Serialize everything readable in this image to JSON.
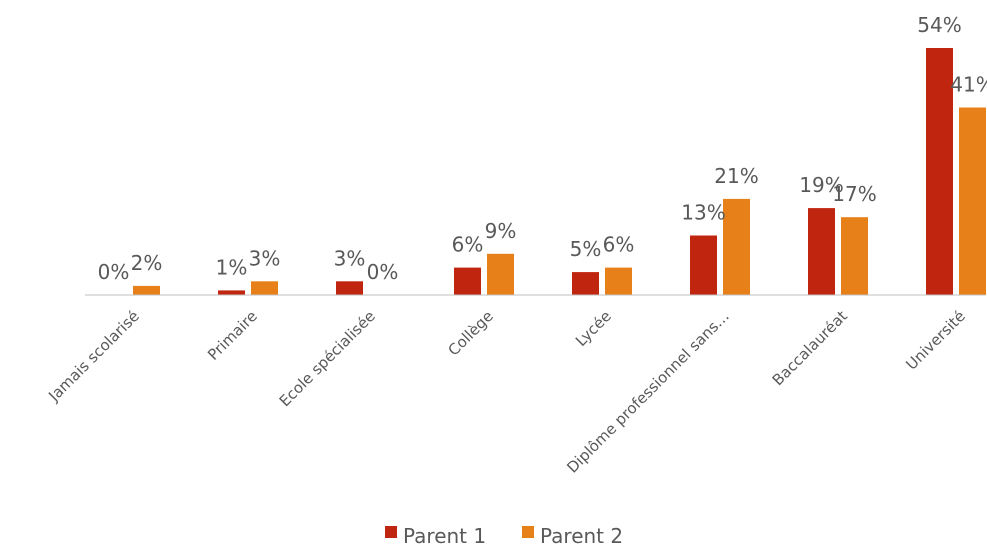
{
  "chart_data": {
    "type": "bar",
    "categories": [
      "Jamais scolarisé",
      "Primaire",
      "Ecole spécialisée",
      "Collège",
      "Lycée",
      "Diplôme professionnel sans…",
      "Baccalauréat",
      "Université"
    ],
    "series": [
      {
        "name": "Parent 1",
        "color": "#C0260F",
        "values": [
          0,
          1,
          3,
          6,
          5,
          13,
          19,
          54
        ],
        "labels": [
          "0%",
          "1%",
          "3%",
          "6%",
          "5%",
          "13%",
          "19%",
          "54%"
        ]
      },
      {
        "name": "Parent 2",
        "color": "#E8801A",
        "values": [
          2,
          3,
          0,
          9,
          6,
          21,
          17,
          41
        ],
        "labels": [
          "2%",
          "3%",
          "0%",
          "9%",
          "6%",
          "21%",
          "17%",
          "41%"
        ]
      }
    ],
    "title": "",
    "xlabel": "",
    "ylabel": "",
    "ylim": [
      0,
      54
    ],
    "grid": false,
    "legend_position": "bottom"
  }
}
